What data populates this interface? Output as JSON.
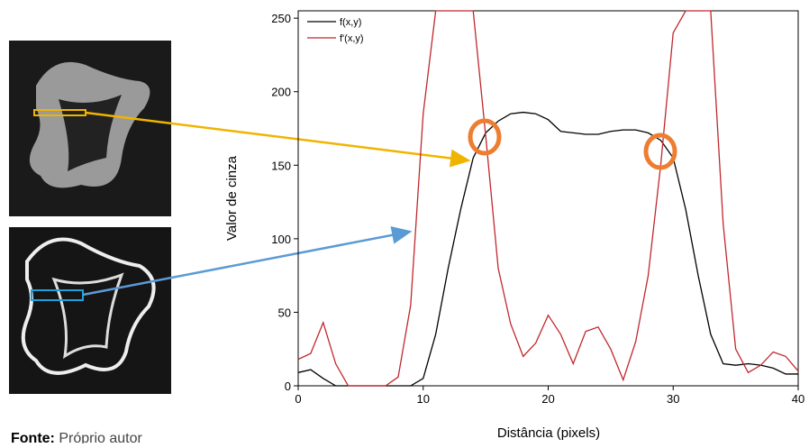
{
  "chart_data": {
    "type": "line",
    "x": [
      0,
      1,
      2,
      3,
      4,
      5,
      6,
      7,
      8,
      9,
      10,
      11,
      12,
      13,
      14,
      15,
      16,
      17,
      18,
      19,
      20,
      21,
      22,
      23,
      24,
      25,
      26,
      27,
      28,
      29,
      30,
      31,
      32,
      33,
      34,
      35,
      36,
      37,
      38,
      39,
      40
    ],
    "series": [
      {
        "name": "f(x,y)",
        "color": "#000000",
        "values": [
          9,
          11,
          5,
          0,
          0,
          0,
          0,
          0,
          0,
          0,
          5,
          35,
          80,
          120,
          155,
          172,
          180,
          185,
          186,
          185,
          181,
          173,
          172,
          171,
          171,
          173,
          174,
          174,
          172,
          167,
          155,
          120,
          75,
          35,
          15,
          14,
          15,
          14,
          12,
          8,
          8
        ]
      },
      {
        "name": "f'(x,y)",
        "color": "#c0282d",
        "values": [
          18,
          22,
          43,
          15,
          0,
          0,
          0,
          0,
          6,
          55,
          185,
          255,
          255,
          255,
          255,
          170,
          80,
          42,
          20,
          29,
          48,
          35,
          15,
          37,
          40,
          25,
          4,
          30,
          75,
          150,
          240,
          255,
          255,
          255,
          110,
          25,
          9,
          14,
          23,
          20,
          10
        ]
      }
    ],
    "x_label": "Distância (pixels)",
    "y_label": "Valor de cinza",
    "xlim": [
      0,
      40
    ],
    "xticks": [
      0,
      10,
      20,
      30,
      40
    ],
    "ylim": [
      0,
      255
    ],
    "yticks": [
      0,
      50,
      100,
      150,
      200,
      250
    ],
    "legend": "top-left"
  },
  "footnote": {
    "label": "Fonte:",
    "text": "Próprio autor"
  }
}
